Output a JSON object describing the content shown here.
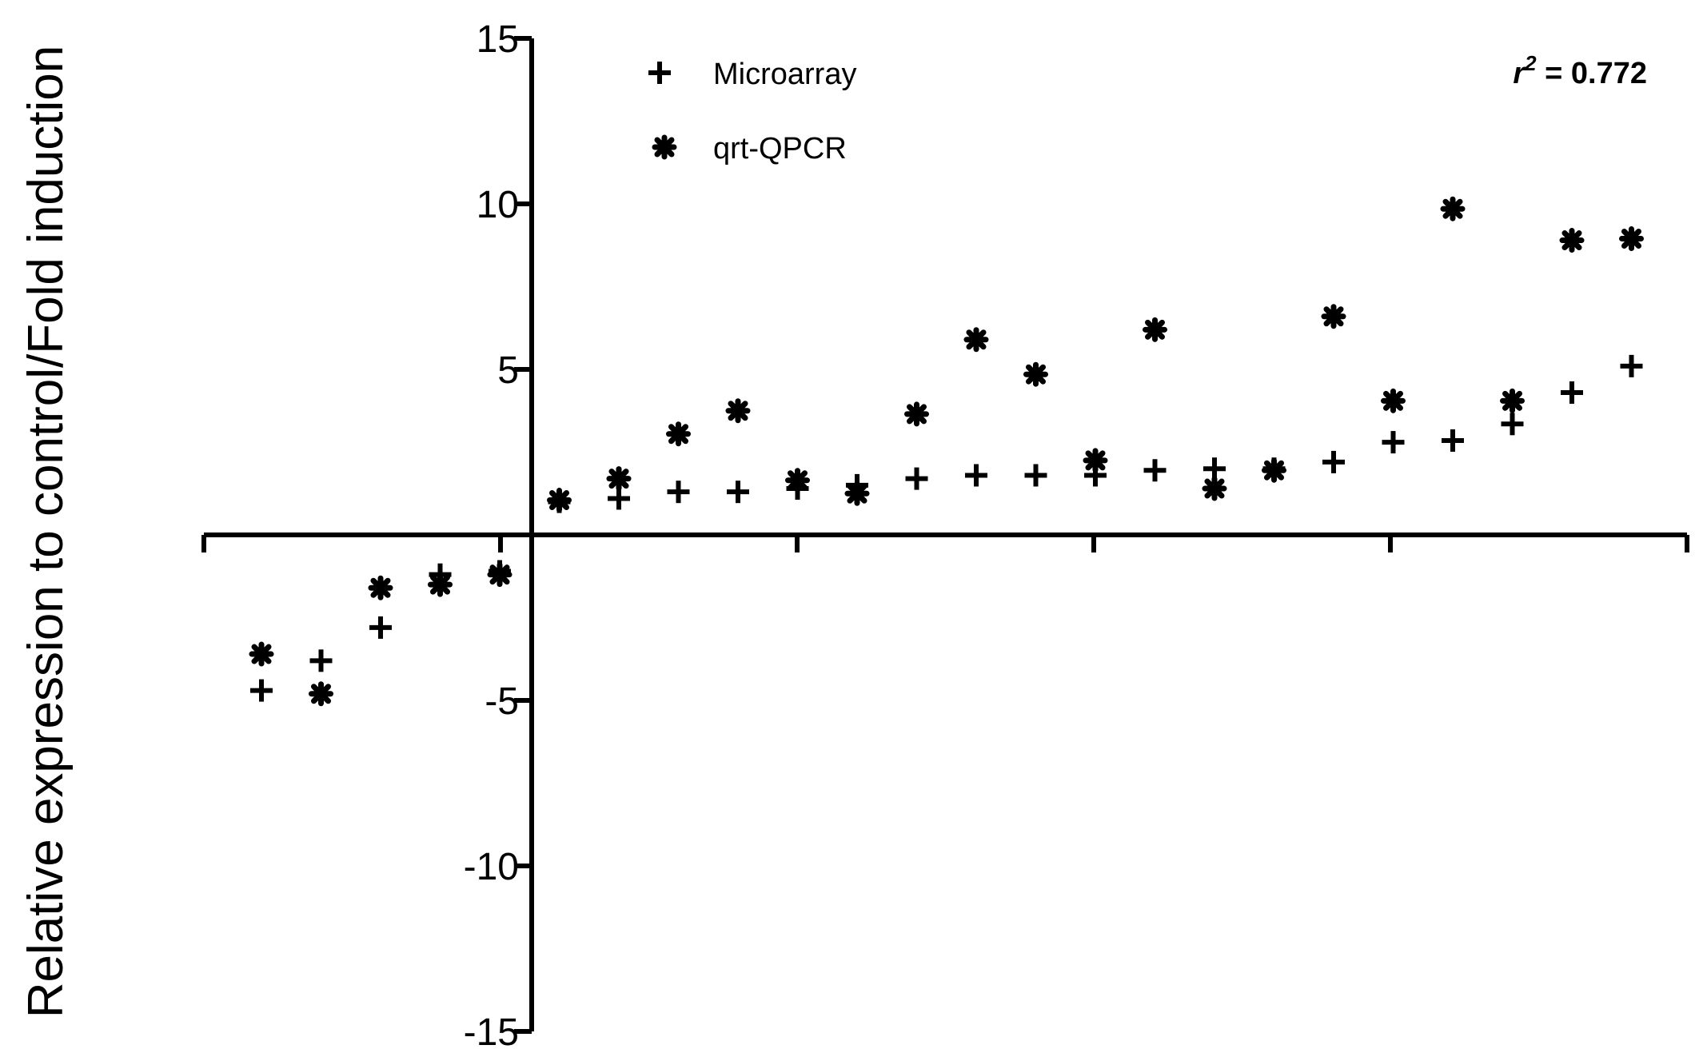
{
  "chart_data": {
    "type": "scatter",
    "title": "",
    "xlabel": "",
    "ylabel": "Relative expression to control/Fold induction",
    "ylim": [
      -15,
      15
    ],
    "yticks": [
      "15",
      "10",
      "5",
      "-5",
      "-10",
      "-15"
    ],
    "x_tick_count": 5,
    "grid": false,
    "legend": "top-left",
    "annotation": {
      "r_symbol": "r",
      "r_exp": "2",
      "text": " = 0.772"
    },
    "series": [
      {
        "name": "Microarray",
        "marker": "plus",
        "x": [
          1,
          2,
          3,
          4,
          5,
          6,
          7,
          8,
          9,
          10,
          11,
          12,
          13,
          14,
          15,
          16,
          17,
          18,
          19,
          20,
          21,
          22,
          23,
          24,
          25
        ],
        "y": [
          -4.7,
          -3.8,
          -2.8,
          -1.2,
          -1.1,
          1.0,
          1.1,
          1.3,
          1.3,
          1.4,
          1.5,
          1.7,
          1.8,
          1.8,
          1.8,
          1.95,
          2.0,
          2.0,
          2.2,
          2.8,
          2.85,
          3.35,
          4.3,
          5.1,
          null
        ]
      },
      {
        "name": "qrt-QPCR",
        "marker": "asterisk",
        "x": [
          1,
          2,
          3,
          4,
          5,
          6,
          7,
          8,
          9,
          10,
          11,
          12,
          13,
          14,
          15,
          16,
          17,
          18,
          19,
          20,
          21,
          22,
          23,
          24,
          25
        ],
        "y": [
          -3.6,
          -4.8,
          -1.6,
          -1.5,
          -1.2,
          1.05,
          1.7,
          3.05,
          3.75,
          1.65,
          1.25,
          3.65,
          5.9,
          4.85,
          2.25,
          6.2,
          1.4,
          1.95,
          6.6,
          4.05,
          9.85,
          4.05,
          8.9,
          8.95,
          null
        ]
      }
    ]
  }
}
